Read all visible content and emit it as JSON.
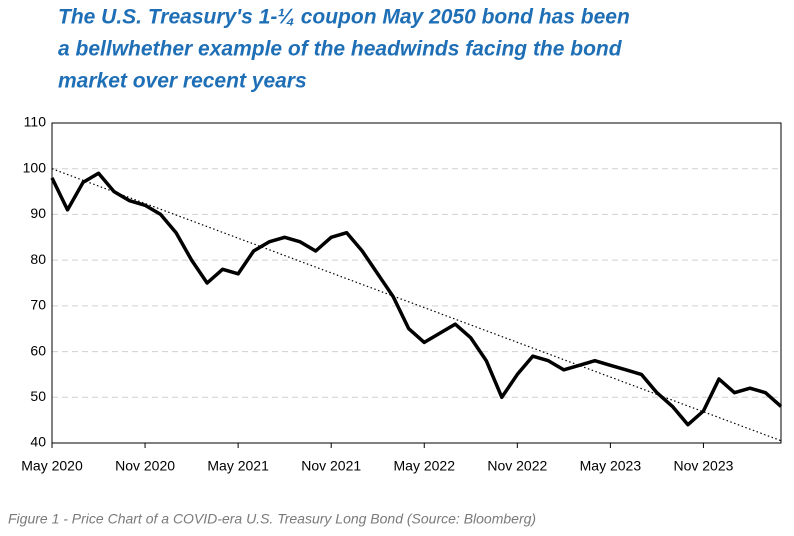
{
  "chart_data": {
    "type": "line",
    "title": [
      "The U.S. Treasury's 1-¼ coupon May 2050 bond has been",
      "a bellwhether example of the headwinds facing the bond",
      "market over recent years"
    ],
    "caption": "Figure 1 - Price Chart of a COVID-era U.S. Treasury Long Bond (Source: Bloomberg)",
    "x": [
      "May 2020",
      "Jun 2020",
      "Jul 2020",
      "Aug 2020",
      "Sep 2020",
      "Oct 2020",
      "Nov 2020",
      "Dec 2020",
      "Jan 2021",
      "Feb 2021",
      "Mar 2021",
      "Apr 2021",
      "May 2021",
      "Jun 2021",
      "Jul 2021",
      "Aug 2021",
      "Sep 2021",
      "Oct 2021",
      "Nov 2021",
      "Dec 2021",
      "Jan 2022",
      "Feb 2022",
      "Mar 2022",
      "Apr 2022",
      "May 2022",
      "Jun 2022",
      "Jul 2022",
      "Aug 2022",
      "Sep 2022",
      "Oct 2022",
      "Nov 2022",
      "Dec 2022",
      "Jan 2023",
      "Feb 2023",
      "Mar 2023",
      "Apr 2023",
      "May 2023",
      "Jun 2023",
      "Jul 2023",
      "Aug 2023",
      "Sep 2023",
      "Oct 2023",
      "Nov 2023",
      "Dec 2023",
      "Jan 2024",
      "Feb 2024",
      "Mar 2024",
      "Apr 2024"
    ],
    "series": [
      {
        "color": "#000000",
        "values": [
          98,
          91,
          97,
          99,
          95,
          93,
          92,
          90,
          86,
          80,
          75,
          78,
          77,
          82,
          84,
          85,
          84,
          82,
          85,
          86,
          82,
          77,
          72,
          65,
          62,
          64,
          66,
          63,
          58,
          50,
          55,
          59,
          58,
          56,
          57,
          58,
          57,
          56,
          55,
          51,
          48,
          44,
          47,
          54,
          51,
          52,
          51,
          48
        ]
      }
    ],
    "trendline": {
      "x": [
        "May 2020",
        "Apr 2024"
      ],
      "values": [
        100,
        40.5
      ],
      "color": "#000000"
    },
    "xlim": [
      "May 2020",
      "Apr 2024"
    ],
    "xticks": [
      "May 2020",
      "Nov 2020",
      "May 2021",
      "Nov 2021",
      "May 2022",
      "Nov 2022",
      "May 2023",
      "Nov 2023"
    ],
    "ylim": [
      40,
      110
    ],
    "yticks": [
      40,
      50,
      60,
      70,
      80,
      90,
      100,
      110
    ],
    "grid": true
  }
}
